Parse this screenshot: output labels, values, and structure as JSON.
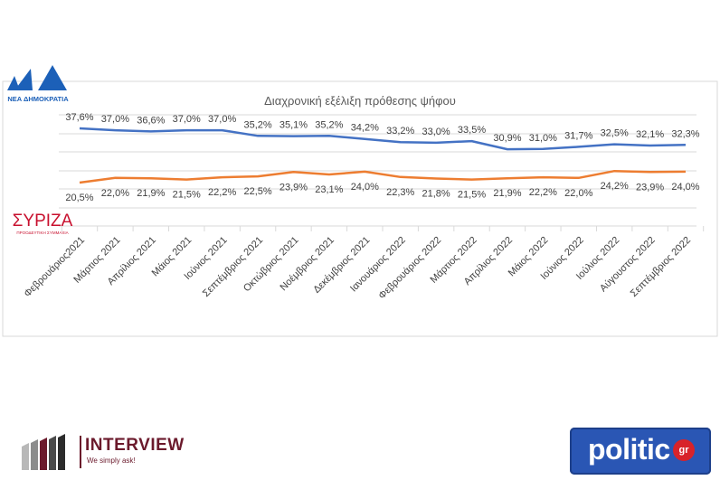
{
  "chart_data": {
    "type": "line",
    "title": "Διαχρονική εξέλιξη πρόθεσης ψήφου",
    "categories": [
      "Φεβρουάριος2021",
      "Μάρτιος 2021",
      "Απρίλιος 2021",
      "Μάιος 2021",
      "Ιούνιος 2021",
      "Σεπτέμβριος 2021",
      "Οκτώβριος 2021",
      "Νοέμβριος 2021",
      "Δεκέμβριος 2021",
      "Ιανουάριος 2022",
      "Φεβρουάριος 2022",
      "Μάρτιος 2022",
      "Απρίλιος 2022",
      "Μάιος 2022",
      "Ιούνιος 2022",
      "Ιούλιος 2022",
      "Αύγουστος 2022",
      "Σεπτέμβριος 2022"
    ],
    "series": [
      {
        "party": "ΝΔ",
        "color": "#4472c4",
        "values": [
          37.6,
          37.0,
          36.6,
          37.0,
          37.0,
          35.2,
          35.1,
          35.2,
          34.2,
          33.2,
          33.0,
          33.5,
          30.9,
          31.0,
          31.7,
          32.5,
          32.1,
          32.3
        ],
        "labels": [
          "37,6%",
          "37,0%",
          "36,6%",
          "37,0%",
          "37,0%",
          "35,2%",
          "35,1%",
          "35,2%",
          "34,2%",
          "33,2%",
          "33,0%",
          "33,5%",
          "30,9%",
          "31,0%",
          "31,7%",
          "32,5%",
          "32,1%",
          "32,3%"
        ]
      },
      {
        "party": "ΣΥΡΙΖΑ",
        "color": "#ed7d31",
        "values": [
          20.5,
          22.0,
          21.9,
          21.5,
          22.2,
          22.5,
          23.9,
          23.1,
          24.0,
          22.3,
          21.8,
          21.5,
          21.9,
          22.2,
          22.0,
          24.2,
          23.9,
          24.0
        ],
        "labels": [
          "20,5%",
          "22,0%",
          "21,9%",
          "21,5%",
          "22,2%",
          "22,5%",
          "23,9%",
          "23,1%",
          "24,0%",
          "22,3%",
          "21,8%",
          "21,5%",
          "21,9%",
          "22,2%",
          "22,0%",
          "24,2%",
          "23,9%",
          "24,0%"
        ]
      }
    ],
    "grid": true,
    "legend": "none"
  },
  "logos": {
    "nd_letters": "ΝΔ",
    "nd_name": "ΝΕΑ ΔΗΜΟΚΡΑΤΙΑ",
    "syriza_name": "ΣΥΡΙΖΑ",
    "syriza_sub": "ΠΡΟΟΔΕΥΤΙΚΗ ΣΥΜΜΑΧΙΑ",
    "interview_name": "INTERVIEW",
    "interview_tag": "We simply ask!",
    "politic_word": "politic",
    "politic_badge": "gr"
  }
}
